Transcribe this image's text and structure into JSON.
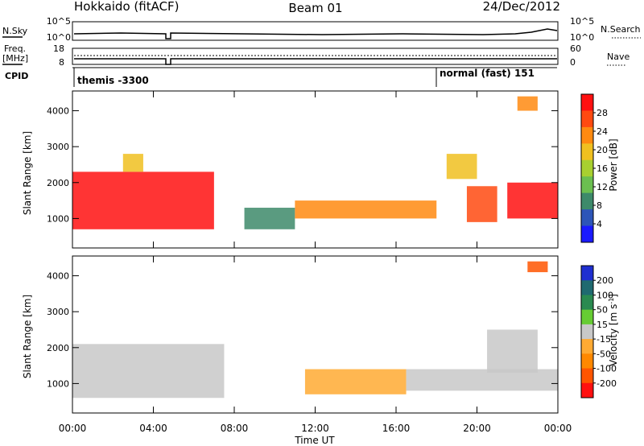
{
  "header": {
    "station": "Hokkaido (fitACF)",
    "beam": "Beam 01",
    "date": "24/Dec/2012"
  },
  "top_panels": {
    "nsky_label": "N.Sky",
    "nsky_ticks": [
      "10^5",
      "10^0"
    ],
    "nsky_right_ticks": [
      "10^5",
      "10^0"
    ],
    "nsearch_label": "N.Search",
    "freq_label_line1": "Freq.",
    "freq_label_line2": "[MHz]",
    "freq_ticks": [
      "18",
      "8"
    ],
    "nave_ticks": [
      "60",
      "0"
    ],
    "nave_label": "Nave",
    "cpid_label": "CPID",
    "cpid_entries": [
      {
        "text": "themis -3300",
        "start_hour": 0.0
      },
      {
        "text": "normal (fast) 151",
        "start_hour": 18.0
      }
    ]
  },
  "x_axis": {
    "label": "Time UT",
    "ticks": [
      "00:00",
      "04:00",
      "08:00",
      "12:00",
      "16:00",
      "20:00",
      "00:00"
    ],
    "range_hours": [
      0,
      24
    ]
  },
  "chart_data": [
    {
      "type": "heatmap",
      "name": "power",
      "ylabel": "Slant Range [km]",
      "yticks": [
        1000,
        2000,
        3000,
        4000
      ],
      "ylim": [
        180,
        4550
      ],
      "colorbar": {
        "label": "Power [dB]",
        "ticks": [
          "28",
          "24",
          "20",
          "16",
          "12",
          "8",
          "4"
        ],
        "range": [
          0,
          30
        ],
        "colors": [
          "#1a1aff",
          "#2d55b8",
          "#3d8a6a",
          "#6bbf50",
          "#a8d030",
          "#f0c020",
          "#ff8a10",
          "#ff4a10",
          "#ff1010"
        ]
      },
      "regions": [
        {
          "t0": 0.0,
          "t1": 7.0,
          "r0": 700,
          "r1": 2300,
          "value": 27
        },
        {
          "t0": 2.5,
          "t1": 3.5,
          "r0": 2300,
          "r1": 2800,
          "value": 17
        },
        {
          "t0": 8.5,
          "t1": 11.0,
          "r0": 700,
          "r1": 1300,
          "value": 7
        },
        {
          "t0": 11.0,
          "t1": 18.0,
          "r0": 1000,
          "r1": 1500,
          "value": 21
        },
        {
          "t0": 19.5,
          "t1": 21.0,
          "r0": 900,
          "r1": 1900,
          "value": 25
        },
        {
          "t0": 21.5,
          "t1": 24.0,
          "r0": 1000,
          "r1": 2000,
          "value": 27
        },
        {
          "t0": 22.0,
          "t1": 23.0,
          "r0": 4000,
          "r1": 4400,
          "value": 22
        },
        {
          "t0": 18.5,
          "t1": 20.0,
          "r0": 2100,
          "r1": 2800,
          "value": 17
        }
      ]
    },
    {
      "type": "heatmap",
      "name": "velocity",
      "ylabel": "Slant Range [km]",
      "yticks": [
        1000,
        2000,
        3000,
        4000
      ],
      "ylim": [
        180,
        4550
      ],
      "colorbar": {
        "label": "Velocity [m s^-1]",
        "ticks": [
          "200",
          "100",
          "50",
          "15",
          "-15",
          "-50",
          "-100",
          "-200"
        ],
        "range": [
          -250,
          250
        ],
        "colors": [
          "#1f2fd0",
          "#1f6a70",
          "#2a8a50",
          "#66cc33",
          "#c8c8c8",
          "#ffaa33",
          "#ff8800",
          "#ff5500",
          "#ff1010"
        ]
      },
      "regions": [
        {
          "t0": 0.0,
          "t1": 7.5,
          "r0": 600,
          "r1": 2100,
          "value": 0
        },
        {
          "t0": 11.5,
          "t1": 16.5,
          "r0": 700,
          "r1": 1400,
          "value": -70
        },
        {
          "t0": 16.5,
          "t1": 24.0,
          "r0": 800,
          "r1": 1400,
          "value": 0
        },
        {
          "t0": 22.5,
          "t1": 23.5,
          "r0": 4100,
          "r1": 4400,
          "value": -180
        },
        {
          "t0": 20.5,
          "t1": 23.0,
          "r0": 1300,
          "r1": 2500,
          "value": 0
        }
      ]
    }
  ]
}
